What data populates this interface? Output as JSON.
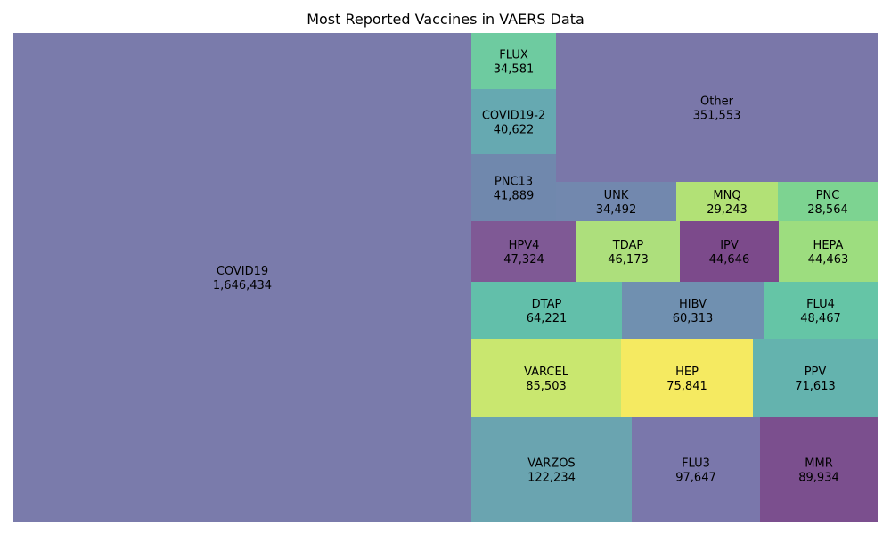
{
  "chart_data": {
    "type": "treemap",
    "title": "Most Reported Vaccines in VAERS Data",
    "tiles": [
      {
        "name": "COVID19",
        "value": 1646434,
        "label": "1,646,434",
        "color": "#7a7bab"
      },
      {
        "name": "VARZOS",
        "value": 122234,
        "label": "122,234",
        "color": "#6aa4b0"
      },
      {
        "name": "FLU3",
        "value": 97647,
        "label": "97,647",
        "color": "#7a77ab"
      },
      {
        "name": "MMR",
        "value": 89934,
        "label": "89,934",
        "color": "#7b4f8e"
      },
      {
        "name": "VARCEL",
        "value": 85503,
        "label": "85,503",
        "color": "#c9e76f"
      },
      {
        "name": "HEP",
        "value": 75841,
        "label": "75,841",
        "color": "#f5ea61"
      },
      {
        "name": "PPV",
        "value": 71613,
        "label": "71,613",
        "color": "#64b3ae"
      },
      {
        "name": "DTAP",
        "value": 64221,
        "label": "64,221",
        "color": "#62bfaa"
      },
      {
        "name": "HIBV",
        "value": 60313,
        "label": "60,313",
        "color": "#7090b0"
      },
      {
        "name": "FLU4",
        "value": 48467,
        "label": "48,467",
        "color": "#65c5a6"
      },
      {
        "name": "HPV4",
        "value": 47324,
        "label": "47,324",
        "color": "#7f5995"
      },
      {
        "name": "TDAP",
        "value": 46173,
        "label": "46,173",
        "color": "#addf7c"
      },
      {
        "name": "IPV",
        "value": 44646,
        "label": "44,646",
        "color": "#7c4a8b"
      },
      {
        "name": "HEPA",
        "value": 44463,
        "label": "44,463",
        "color": "#9ddd7f"
      },
      {
        "name": "PNC13",
        "value": 41889,
        "label": "41,889",
        "color": "#7088ad"
      },
      {
        "name": "COVID19-2",
        "value": 40622,
        "label": "40,622",
        "color": "#66a9b1"
      },
      {
        "name": "FLUX",
        "value": 34581,
        "label": "34,581",
        "color": "#6ecba0"
      },
      {
        "name": "UNK",
        "value": 34492,
        "label": "34,492",
        "color": "#7288ae"
      },
      {
        "name": "MNQ",
        "value": 29243,
        "label": "29,243",
        "color": "#b2e176"
      },
      {
        "name": "PNC",
        "value": 28564,
        "label": "28,564",
        "color": "#7dd391"
      },
      {
        "name": "Other",
        "value": 351553,
        "label": "351,553",
        "color": "#7a77a9"
      }
    ]
  }
}
